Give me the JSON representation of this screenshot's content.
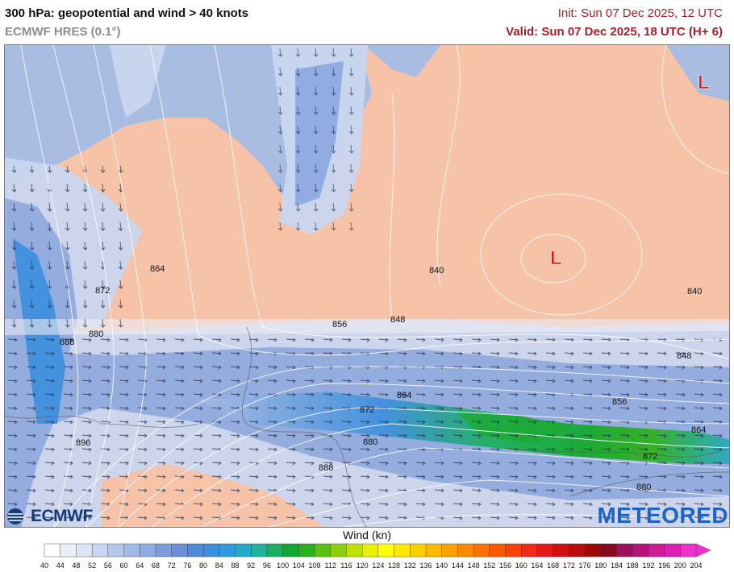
{
  "header": {
    "title": "300 hPa: geopotential and wind > 40 knots",
    "model": "ECMWF HRES (0.1°)",
    "init": "Init: Sun 07 Dec 2025, 12 UTC",
    "valid": "Valid: Sun 07 Dec 2025, 18 UTC (H+ 6)"
  },
  "map": {
    "low_symbol": "L",
    "contour_labels": [
      "864",
      "872",
      "880",
      "888",
      "896",
      "840",
      "856",
      "848",
      "848",
      "856",
      "864",
      "872",
      "880",
      "888",
      "840",
      "864",
      "872",
      "880"
    ],
    "colors": {
      "land": "#f6c2a8",
      "sea": "#a9bde3",
      "low_symbol": "#d42020",
      "contours": "#ffffff"
    }
  },
  "colorbar": {
    "label": "Wind (kn)",
    "ticks": [
      "40",
      "44",
      "48",
      "52",
      "56",
      "60",
      "64",
      "68",
      "72",
      "76",
      "80",
      "84",
      "88",
      "92",
      "96",
      "100",
      "104",
      "108",
      "112",
      "116",
      "120",
      "124",
      "128",
      "132",
      "136",
      "140",
      "144",
      "148",
      "152",
      "156",
      "160",
      "164",
      "168",
      "172",
      "176",
      "180",
      "184",
      "188",
      "192",
      "196",
      "200",
      "204"
    ],
    "colors": [
      "#ffffff",
      "#eceff8",
      "#dde4f4",
      "#cad6ef",
      "#b6c8ea",
      "#a3b9e5",
      "#8fabe1",
      "#7c9ddd",
      "#6b8fd8",
      "#4f8ae0",
      "#3a8fe0",
      "#2e9be0",
      "#25a8c8",
      "#1fb39a",
      "#18b060",
      "#10a830",
      "#2bb020",
      "#5cc010",
      "#8ed008",
      "#c0e000",
      "#e8f000",
      "#ffff00",
      "#ffe800",
      "#ffd000",
      "#ffb800",
      "#ffa000",
      "#ff8800",
      "#ff7000",
      "#ff5800",
      "#ff4000",
      "#f82818",
      "#e81818",
      "#d01010",
      "#b80c0c",
      "#a00808",
      "#8c0820",
      "#a0105a",
      "#b81478",
      "#d01c96",
      "#e020b4",
      "#ee30cc"
    ]
  },
  "logos": {
    "left": "ECMWF",
    "right": "METEORED"
  }
}
